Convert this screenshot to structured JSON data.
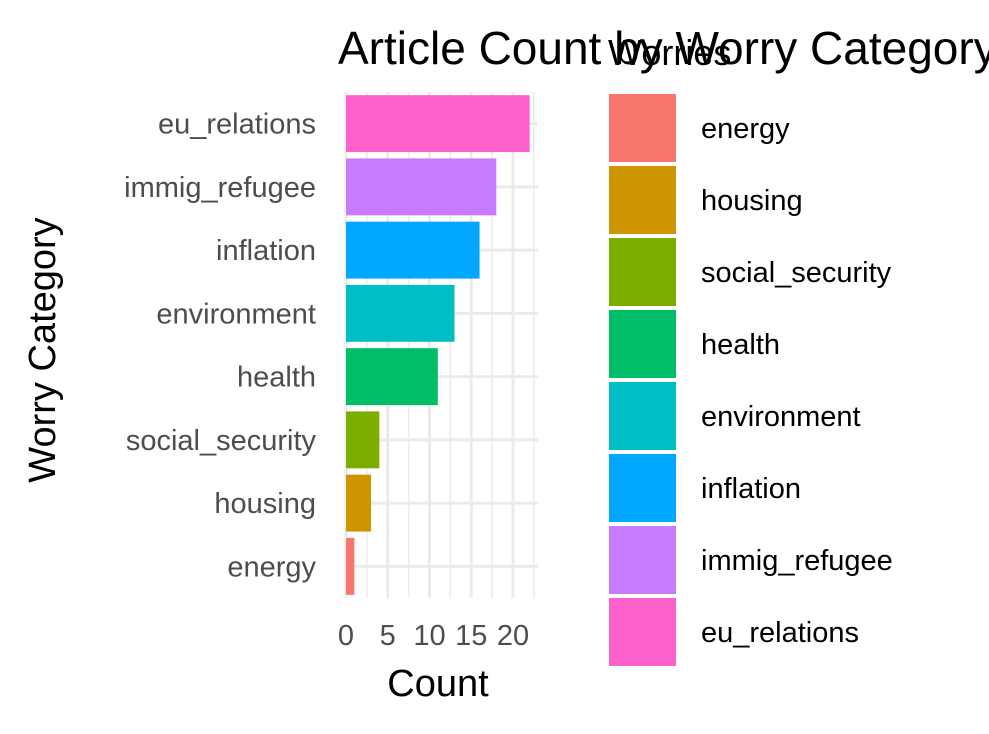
{
  "chart_data": {
    "type": "bar",
    "orientation": "horizontal",
    "title": "Article Count by Worry Category",
    "xlabel": "Count",
    "ylabel": "Worry Category",
    "categories": [
      "energy",
      "housing",
      "social_security",
      "health",
      "environment",
      "inflation",
      "immig_refugee",
      "eu_relations"
    ],
    "values": [
      1,
      3,
      4,
      11,
      13,
      16,
      18,
      22
    ],
    "colors": [
      "#F8766D",
      "#CD9600",
      "#7CAE00",
      "#00BE67",
      "#00BFC4",
      "#00A9FF",
      "#C77CFF",
      "#FF61CC"
    ],
    "xlim": [
      0,
      23
    ],
    "x_ticks": [
      "0",
      "5",
      "10",
      "15",
      "20"
    ],
    "grid": true,
    "legend": {
      "title": "Worries",
      "position": "right",
      "entries": [
        "energy",
        "housing",
        "social_security",
        "health",
        "environment",
        "inflation",
        "immig_refugee",
        "eu_relations"
      ]
    }
  }
}
